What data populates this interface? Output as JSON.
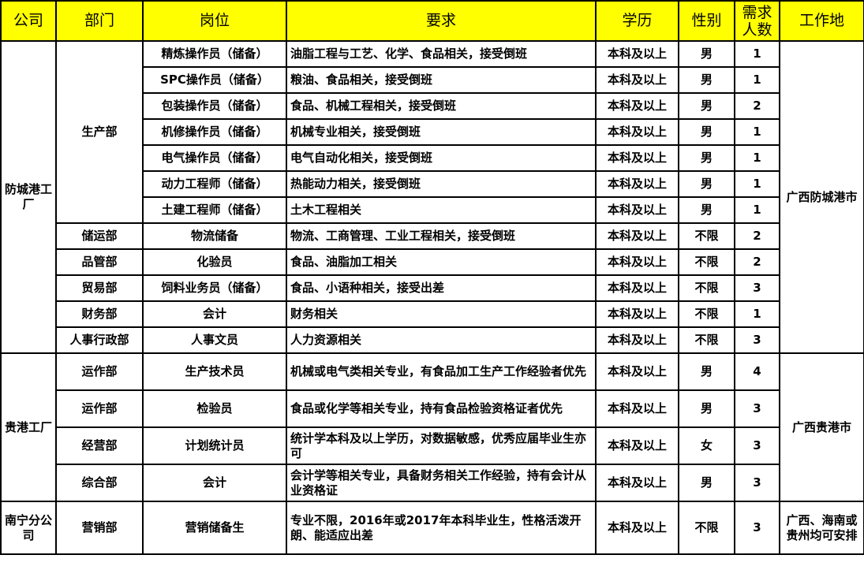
{
  "headers": [
    "公司",
    "部门",
    "岗位",
    "要求",
    "学历",
    "性别",
    "需求人数",
    "工作地"
  ],
  "groups": [
    {
      "company": "防城港工厂",
      "location": "广西防城港市",
      "rows": [
        {
          "dept": "生产部",
          "dept_span": 7,
          "position": "精炼操作员（储备）",
          "requirement": "油脂工程与工艺、化学、食品相关，接受倒班",
          "education": "本科及以上",
          "gender": "男",
          "count": "1"
        },
        {
          "position": "SPC操作员（储备）",
          "requirement": "粮油、食品相关，接受倒班",
          "education": "本科及以上",
          "gender": "男",
          "count": "1"
        },
        {
          "position": "包装操作员（储备）",
          "requirement": "食品、机械工程相关，接受倒班",
          "education": "本科及以上",
          "gender": "男",
          "count": "2"
        },
        {
          "position": "机修操作员（储备）",
          "requirement": "机械专业相关，接受倒班",
          "education": "本科及以上",
          "gender": "男",
          "count": "1"
        },
        {
          "position": "电气操作员（储备）",
          "requirement": "电气自动化相关，接受倒班",
          "education": "本科及以上",
          "gender": "男",
          "count": "1"
        },
        {
          "position": "动力工程师（储备）",
          "requirement": "热能动力相关，接受倒班",
          "education": "本科及以上",
          "gender": "男",
          "count": "1"
        },
        {
          "position": "土建工程师（储备）",
          "requirement": "土木工程相关",
          "education": "本科及以上",
          "gender": "男",
          "count": "1"
        },
        {
          "dept": "储运部",
          "dept_span": 1,
          "position": "物流储备",
          "requirement": "物流、工商管理、工业工程相关，接受倒班",
          "education": "本科及以上",
          "gender": "不限",
          "count": "2"
        },
        {
          "dept": "品管部",
          "dept_span": 1,
          "position": "化验员",
          "requirement": "食品、油脂加工相关",
          "education": "本科及以上",
          "gender": "不限",
          "count": "2"
        },
        {
          "dept": "贸易部",
          "dept_span": 1,
          "position": "饲料业务员（储备）",
          "requirement": "食品、小语种相关，接受出差",
          "education": "本科及以上",
          "gender": "不限",
          "count": "3"
        },
        {
          "dept": "财务部",
          "dept_span": 1,
          "position": "会计",
          "requirement": "财务相关",
          "education": "本科及以上",
          "gender": "不限",
          "count": "1"
        },
        {
          "dept": "人事行政部",
          "dept_span": 1,
          "position": "人事文员",
          "requirement": "人力资源相关",
          "education": "本科及以上",
          "gender": "不限",
          "count": "3"
        }
      ]
    },
    {
      "company": "贵港工厂",
      "location": "广西贵港市",
      "rows": [
        {
          "dept": "运作部",
          "dept_span": 1,
          "position": "生产技术员",
          "requirement": "机械或电气类相关专业，有食品加工生产工作经验者优先",
          "education": "本科及以上",
          "gender": "男",
          "count": "4"
        },
        {
          "dept": "运作部",
          "dept_span": 1,
          "position": "检验员",
          "requirement": "食品或化学等相关专业，持有食品检验资格证者优先",
          "education": "本科及以上",
          "gender": "男",
          "count": "3"
        },
        {
          "dept": "经营部",
          "dept_span": 1,
          "position": "计划统计员",
          "requirement": "统计学本科及以上学历，对数据敏感，优秀应届毕业生亦可",
          "education": "本科及以上",
          "gender": "女",
          "count": "3"
        },
        {
          "dept": "综合部",
          "dept_span": 1,
          "position": "会计",
          "requirement": "会计学等相关专业，具备财务相关工作经验，持有会计从业资格证",
          "education": "本科及以上",
          "gender": "男",
          "count": "3"
        }
      ]
    },
    {
      "company": "南宁分公司",
      "location": "广西、海南或贵州均可安排",
      "rows": [
        {
          "dept": "营销部",
          "dept_span": 1,
          "position": "营销储备生",
          "requirement": "专业不限，2016年或2017年本科毕业生，性格活泼开朗、能适应出差",
          "education": "本科及以上",
          "gender": "不限",
          "count": "3"
        }
      ]
    }
  ],
  "colors": {
    "header_bg": "#ffff00",
    "border": "#000000"
  }
}
